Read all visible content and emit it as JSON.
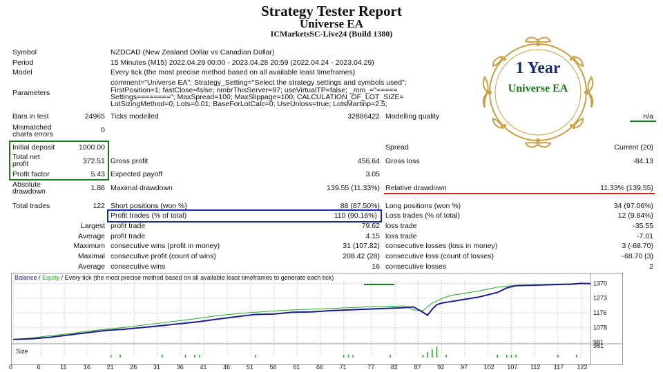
{
  "header": {
    "title": "Strategy Tester Report",
    "subtitle": "Universe EA",
    "server": "ICMarketsSC-Live24 (Build 1380)"
  },
  "badge": {
    "line1": "1 Year",
    "line2": "Universe EA",
    "gold": "#c9a041",
    "navy": "#1a2a6e",
    "green": "#1a7a1a"
  },
  "info": {
    "symbol_label": "Symbol",
    "symbol_value": "NZDCAD (New Zealand Dollar vs Canadian Dollar)",
    "period_label": "Period",
    "period_value": "15 Minutes (M15) 2022.04.29 00:00 - 2023.04.28 20:59 (2022.04.24 - 2023.04.29)",
    "model_label": "Model",
    "model_value": "Every tick (the most precise method based on all available least timeframes)",
    "params_label": "Parameters",
    "params_lines": [
      "comment=\"Universe EA\"; Strategy_Setting=\"Select the strategy settings and symbols used\";",
      "FirstPosition=1; fastClose=false; nmbrThisServer=97; useVirtualTP=false; _mm_=\"=====",
      "Settings========\"; MaxSpread=100; MaxSlippage=100; CALCULATION_OF_LOT_SIZE=",
      "LotSizingMethod=0; Lots=0.01; BaseForLotCalc=0; UseUnloss=true; LotsMartinp=2.5;"
    ]
  },
  "stats": {
    "bars_label": "Bars in test",
    "bars_value": "24965",
    "ticks_label": "Ticks modelled",
    "ticks_value": "32886422",
    "quality_label": "Modelling quality",
    "quality_value": "n/a",
    "mismatch_label_1": "Mismatched",
    "mismatch_label_2": "charts errors",
    "mismatch_value": "0",
    "deposit_label": "Initial deposit",
    "deposit_value": "1000.00",
    "spread_label": "Spread",
    "spread_value": "Current (20)",
    "netprofit_label_1": "Total net",
    "netprofit_label_2": "profit",
    "netprofit_value": "372.51",
    "grossprofit_label": "Gross profit",
    "grossprofit_value": "456.64",
    "grossloss_label": "Gross loss",
    "grossloss_value": "-84.13",
    "pf_label": "Profit factor",
    "pf_value": "5.43",
    "payoff_label": "Expected payoff",
    "payoff_value": "3.05",
    "absdd_label_1": "Absolute",
    "absdd_label_2": "drawdown",
    "absdd_value": "1.86",
    "maxdd_label": "Maximal drawdown",
    "maxdd_value": "139.55 (11.33%)",
    "reldd_label": "Relative drawdown",
    "reldd_value": "11.33% (139.55)",
    "trades_label": "Total trades",
    "trades_value": "122",
    "short_label": "Short positions (won %)",
    "short_value": "88 (87.50%)",
    "long_label": "Long positions (won %)",
    "long_value": "34 (97.06%)",
    "profit_trades_label": "Profit trades (% of total)",
    "profit_trades_value": "110 (90.16%)",
    "loss_trades_label": "Loss trades (% of total)",
    "loss_trades_value": "12 (9.84%)",
    "largest_label": "Largest",
    "largest_profit_label": "profit trade",
    "largest_profit_value": "79.62",
    "largest_loss_label": "loss trade",
    "largest_loss_value": "-35.55",
    "average_label": "Average",
    "avg_profit_label": "profit trade",
    "avg_profit_value": "4.15",
    "avg_loss_label": "loss trade",
    "avg_loss_value": "-7.01",
    "maximum_label": "Maximum",
    "max_wins_label": "consecutive wins (profit in money)",
    "max_wins_value": "31 (107.82)",
    "max_losses_label": "consecutive losses (loss in money)",
    "max_losses_value": "3 (-68.70)",
    "maximal_label": "Maximal",
    "max_profit_label": "consecutive profit (count of wins)",
    "max_profit_value": "208.42 (28)",
    "max_loss_label": "consecutive loss (count of losses)",
    "max_loss_value": "-68.70 (3)",
    "average2_label": "Average",
    "avg_wins_label": "consecutive wins",
    "avg_wins_value": "16",
    "avg_losses_label": "consecutive losses",
    "avg_losses_value": "2"
  },
  "chart_data": {
    "type": "line",
    "legend": {
      "balance": "Balance",
      "sep1": " / ",
      "equity": "Equity",
      "rest": " / Every tick (the most precise method based on all available least timeframes to generate each tick)"
    },
    "size_label": "Size",
    "ylim": [
      981,
      1390
    ],
    "yticks": [
      "1370",
      "1273",
      "1176",
      "1078",
      "981"
    ],
    "ytick_values": [
      1370,
      1273,
      1176,
      1078,
      981
    ],
    "xticks": [
      "0",
      "6",
      "11",
      "16",
      "21",
      "26",
      "31",
      "36",
      "41",
      "46",
      "51",
      "56",
      "61",
      "66",
      "71",
      "77",
      "82",
      "87",
      "92",
      "97",
      "102",
      "107",
      "112",
      "117",
      "122"
    ],
    "xtick_values": [
      0,
      6,
      11,
      16,
      21,
      26,
      31,
      36,
      41,
      46,
      51,
      56,
      61,
      66,
      71,
      77,
      82,
      87,
      92,
      97,
      102,
      107,
      112,
      117,
      122
    ],
    "xlim": [
      0,
      124
    ],
    "series": [
      {
        "name": "Balance",
        "color": "#1a1a8c",
        "x": [
          0,
          4,
          8,
          12,
          16,
          20,
          24,
          28,
          32,
          36,
          40,
          44,
          48,
          52,
          56,
          60,
          64,
          68,
          72,
          76,
          80,
          84,
          86,
          88,
          89,
          90,
          91,
          92,
          94,
          96,
          100,
          104,
          106,
          108,
          112,
          116,
          120,
          122,
          124
        ],
        "y": [
          1000,
          1005,
          1015,
          1030,
          1045,
          1060,
          1068,
          1080,
          1092,
          1105,
          1118,
          1135,
          1150,
          1165,
          1168,
          1180,
          1182,
          1190,
          1195,
          1200,
          1205,
          1210,
          1215,
          1180,
          1160,
          1200,
          1230,
          1240,
          1250,
          1260,
          1280,
          1310,
          1340,
          1355,
          1358,
          1362,
          1365,
          1370,
          1368
        ]
      },
      {
        "name": "Equity",
        "color": "#22aa22",
        "x": [
          0,
          4,
          8,
          12,
          16,
          20,
          24,
          28,
          32,
          36,
          40,
          44,
          48,
          52,
          56,
          60,
          64,
          68,
          72,
          76,
          80,
          84,
          86,
          88,
          90,
          92,
          94,
          96,
          100,
          104,
          108,
          112,
          116,
          120,
          122,
          124
        ],
        "y": [
          1000,
          1010,
          1025,
          1038,
          1055,
          1068,
          1080,
          1095,
          1110,
          1125,
          1140,
          1158,
          1170,
          1180,
          1188,
          1195,
          1200,
          1205,
          1210,
          1215,
          1218,
          1222,
          1195,
          1190,
          1240,
          1270,
          1290,
          1300,
          1320,
          1345,
          1358,
          1362,
          1365,
          1367,
          1370,
          1368
        ]
      }
    ],
    "size_bars": {
      "x": [
        21,
        23,
        32,
        37,
        39,
        40,
        52,
        71,
        72,
        73,
        81,
        88,
        89,
        90,
        91,
        93,
        104,
        106,
        107,
        108,
        117,
        121
      ],
      "h": [
        1,
        1,
        1,
        1,
        1,
        1,
        1,
        1,
        1,
        1,
        1,
        1,
        2,
        3,
        4,
        1,
        1,
        1,
        1,
        1,
        1,
        1
      ]
    }
  }
}
